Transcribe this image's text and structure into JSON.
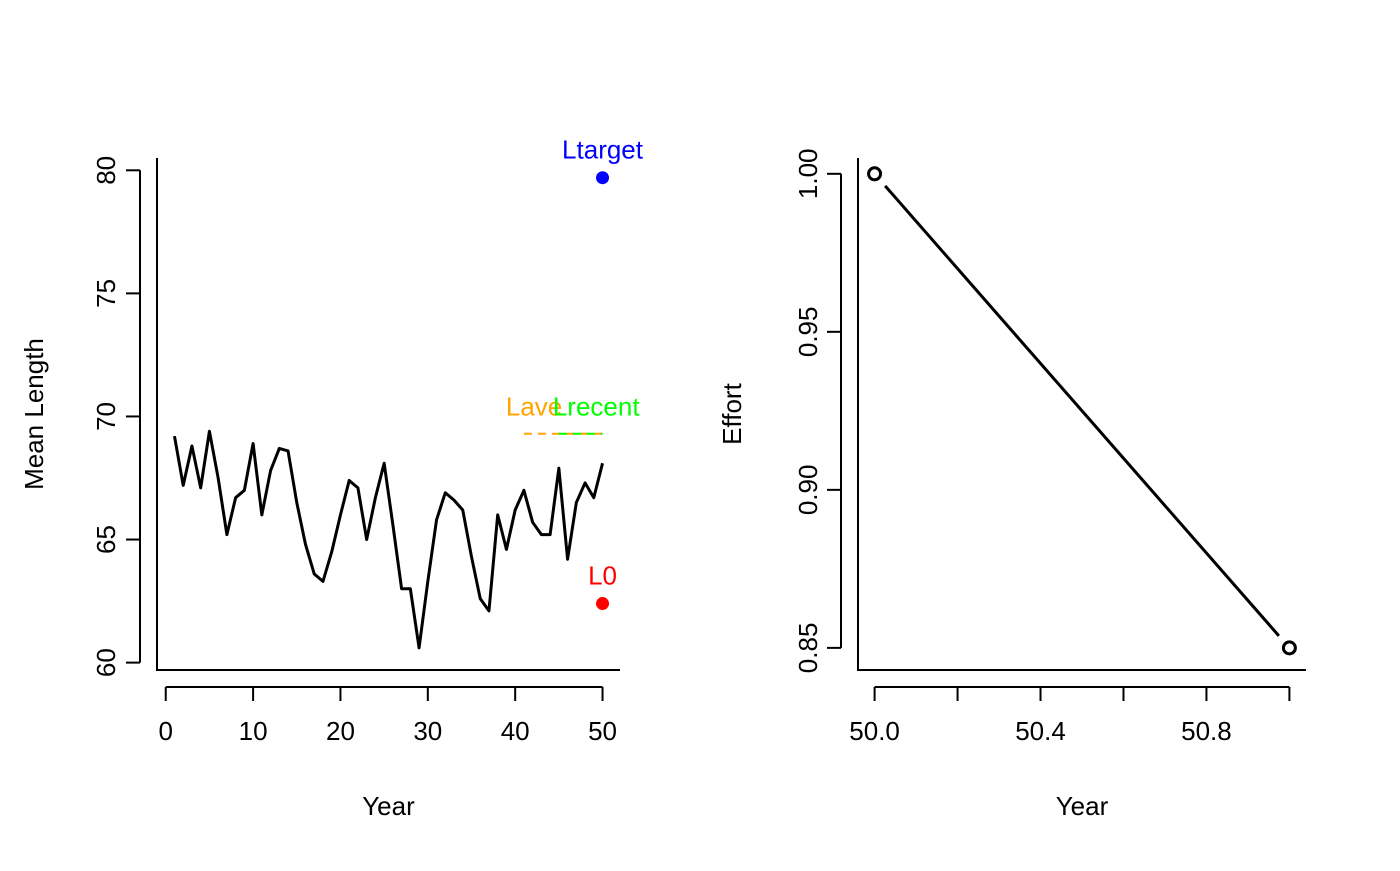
{
  "chart_data": [
    {
      "type": "line",
      "xlabel": "Year",
      "ylabel": "Mean Length",
      "xlim": [
        -1,
        52
      ],
      "ylim": [
        59.7,
        80.5
      ],
      "xticks": [
        0,
        10,
        20,
        30,
        40,
        50
      ],
      "yticks": [
        60,
        65,
        70,
        75,
        80
      ],
      "series": [
        {
          "color": "#000000",
          "x": [
            1,
            2,
            3,
            4,
            5,
            6,
            7,
            8,
            9,
            10,
            11,
            12,
            13,
            14,
            15,
            16,
            17,
            18,
            19,
            20,
            21,
            22,
            23,
            24,
            25,
            26,
            27,
            28,
            29,
            30,
            31,
            32,
            33,
            34,
            35,
            36,
            37,
            38,
            39,
            40,
            41,
            42,
            43,
            44,
            45,
            46,
            47,
            48,
            49,
            50
          ],
          "values": [
            69.2,
            67.2,
            68.8,
            67.1,
            69.4,
            67.5,
            65.2,
            66.7,
            67.0,
            68.9,
            66.0,
            67.8,
            68.7,
            68.6,
            66.5,
            64.8,
            63.6,
            63.3,
            64.5,
            66.0,
            67.4,
            67.1,
            65.0,
            66.7,
            68.1,
            65.6,
            63.0,
            63.0,
            60.6,
            63.3,
            65.8,
            66.9,
            66.6,
            66.2,
            64.3,
            62.6,
            62.1,
            66.0,
            64.6,
            66.2,
            67.0,
            65.7,
            65.2,
            65.2,
            67.9,
            64.2,
            66.5,
            67.3,
            66.7,
            68.1
          ]
        }
      ],
      "reference_lines": [
        {
          "label": "Lave",
          "color": "#FFA500",
          "y": 69.3,
          "x": [
            41,
            50
          ],
          "style": "dashed"
        },
        {
          "label": "Lrecent",
          "color": "#00FF00",
          "y": 69.3,
          "x": [
            45,
            50
          ],
          "style": "dashed"
        }
      ],
      "points": [
        {
          "label": "Ltarget",
          "color": "#0000FF",
          "x": 50,
          "y": 79.7
        },
        {
          "label": "L0",
          "color": "#FF0000",
          "x": 50,
          "y": 62.4
        }
      ]
    },
    {
      "type": "line",
      "xlabel": "Year",
      "ylabel": "Effort",
      "xlim": [
        49.96,
        51.04
      ],
      "ylim": [
        0.843,
        1.005
      ],
      "xticks": [
        50.0,
        50.2,
        50.4,
        50.6,
        50.8,
        51.0
      ],
      "xtick_labels": [
        "50.0",
        "",
        "50.4",
        "",
        "50.8",
        ""
      ],
      "yticks": [
        0.85,
        0.9,
        0.95,
        1.0
      ],
      "ytick_labels": [
        "0.85",
        "0.90",
        "0.95",
        "1.00"
      ],
      "series": [
        {
          "color": "#000000",
          "x": [
            50,
            51
          ],
          "values": [
            1.0,
            0.85
          ],
          "markers": "open-circle"
        }
      ]
    }
  ]
}
